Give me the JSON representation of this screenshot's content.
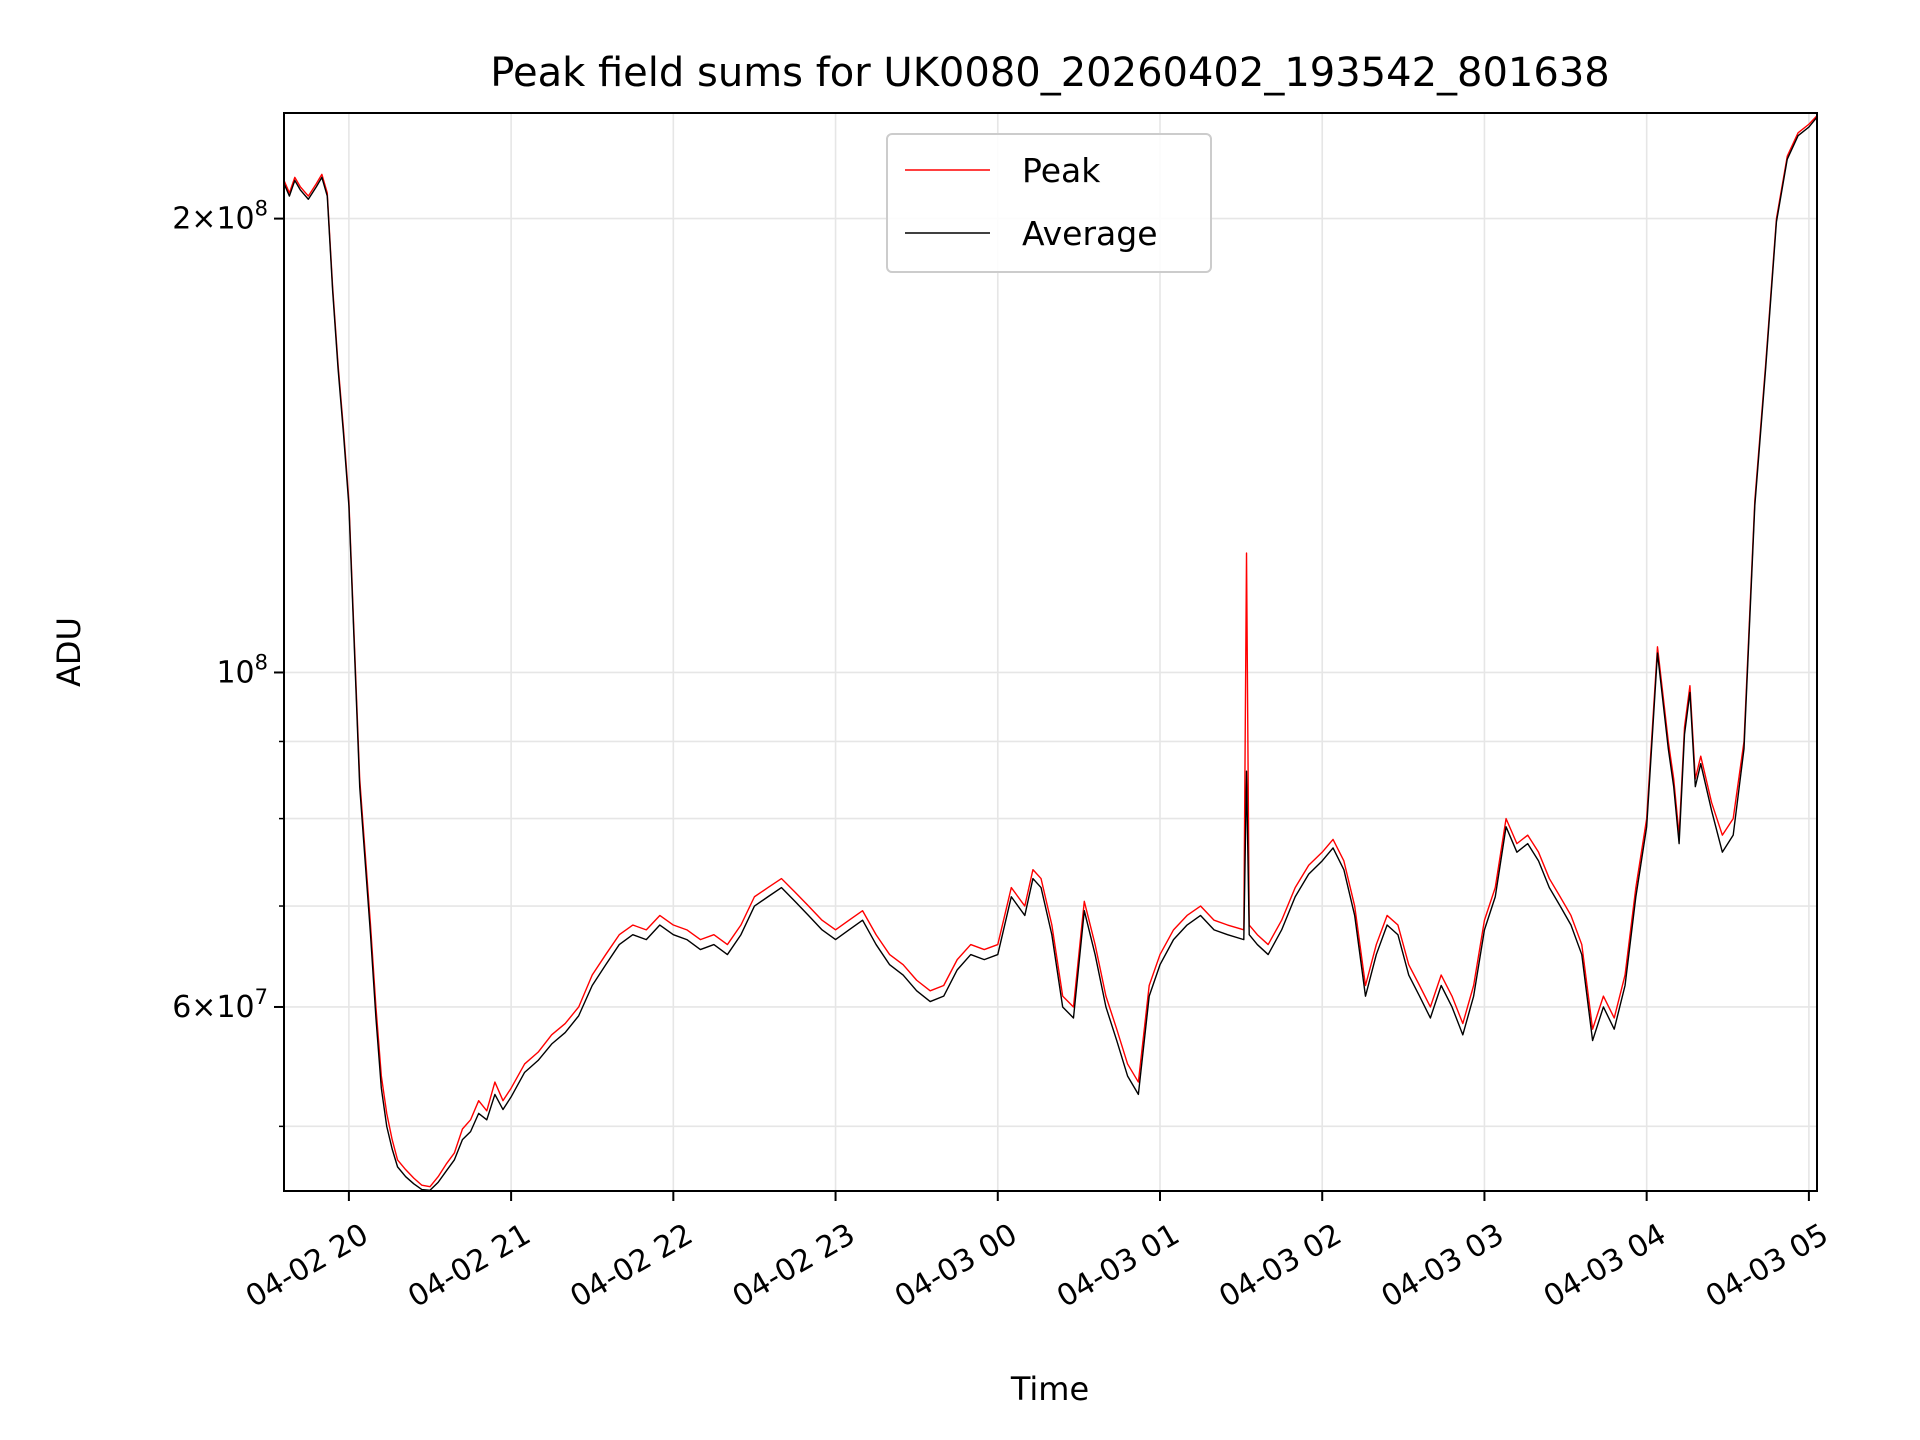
{
  "chart_data": {
    "type": "line",
    "title": "Peak field sums for UK0080_20260402_193542_801638",
    "xlabel": "Time",
    "ylabel": "ADU",
    "y_scale": "log",
    "ylim": [
      45300000,
      235000000
    ],
    "xlim": [
      "2026-04-02 19:36",
      "2026-04-03 05:03"
    ],
    "grid": true,
    "legend": {
      "placement": "top-center",
      "entries": [
        "Peak",
        "Average"
      ]
    },
    "x_ticks": [
      {
        "value": "2026-04-02 20:00",
        "label": "04-02 20"
      },
      {
        "value": "2026-04-02 21:00",
        "label": "04-02 21"
      },
      {
        "value": "2026-04-02 22:00",
        "label": "04-02 22"
      },
      {
        "value": "2026-04-02 23:00",
        "label": "04-02 23"
      },
      {
        "value": "2026-04-03 00:00",
        "label": "04-03 00"
      },
      {
        "value": "2026-04-03 01:00",
        "label": "04-03 01"
      },
      {
        "value": "2026-04-03 02:00",
        "label": "04-03 02"
      },
      {
        "value": "2026-04-03 03:00",
        "label": "04-03 03"
      },
      {
        "value": "2026-04-03 04:00",
        "label": "04-03 04"
      },
      {
        "value": "2026-04-03 05:00",
        "label": "04-03 05"
      }
    ],
    "y_ticks_major": [
      {
        "value": 60000000,
        "base": "6",
        "exp": "7"
      },
      {
        "value": 100000000,
        "base": "",
        "exp": "8"
      },
      {
        "value": 200000000,
        "base": "2",
        "exp": "8"
      }
    ],
    "y_ticks_minor": [
      50000000,
      70000000,
      80000000,
      90000000
    ],
    "series": [
      {
        "name": "Peak",
        "color": "#ff0000",
        "x": [
          "2026-04-02 19:36",
          "2026-04-02 19:38",
          "2026-04-02 19:40",
          "2026-04-02 19:42",
          "2026-04-02 19:45",
          "2026-04-02 19:48",
          "2026-04-02 19:50",
          "2026-04-02 19:52",
          "2026-04-02 19:54",
          "2026-04-02 19:56",
          "2026-04-02 19:58",
          "2026-04-02 20:00",
          "2026-04-02 20:02",
          "2026-04-02 20:04",
          "2026-04-02 20:06",
          "2026-04-02 20:08",
          "2026-04-02 20:10",
          "2026-04-02 20:12",
          "2026-04-02 20:14",
          "2026-04-02 20:16",
          "2026-04-02 20:18",
          "2026-04-02 20:21",
          "2026-04-02 20:24",
          "2026-04-02 20:27",
          "2026-04-02 20:30",
          "2026-04-02 20:33",
          "2026-04-02 20:36",
          "2026-04-02 20:39",
          "2026-04-02 20:42",
          "2026-04-02 20:45",
          "2026-04-02 20:48",
          "2026-04-02 20:51",
          "2026-04-02 20:54",
          "2026-04-02 20:57",
          "2026-04-02 21:00",
          "2026-04-02 21:05",
          "2026-04-02 21:10",
          "2026-04-02 21:15",
          "2026-04-02 21:20",
          "2026-04-02 21:25",
          "2026-04-02 21:30",
          "2026-04-02 21:35",
          "2026-04-02 21:40",
          "2026-04-02 21:45",
          "2026-04-02 21:50",
          "2026-04-02 21:55",
          "2026-04-02 22:00",
          "2026-04-02 22:05",
          "2026-04-02 22:10",
          "2026-04-02 22:15",
          "2026-04-02 22:20",
          "2026-04-02 22:25",
          "2026-04-02 22:30",
          "2026-04-02 22:35",
          "2026-04-02 22:40",
          "2026-04-02 22:45",
          "2026-04-02 22:50",
          "2026-04-02 22:55",
          "2026-04-02 23:00",
          "2026-04-02 23:05",
          "2026-04-02 23:10",
          "2026-04-02 23:15",
          "2026-04-02 23:20",
          "2026-04-02 23:25",
          "2026-04-02 23:30",
          "2026-04-02 23:35",
          "2026-04-02 23:40",
          "2026-04-02 23:45",
          "2026-04-02 23:50",
          "2026-04-02 23:55",
          "2026-04-03 00:00",
          "2026-04-03 00:05",
          "2026-04-03 00:10",
          "2026-04-03 00:13",
          "2026-04-03 00:16",
          "2026-04-03 00:20",
          "2026-04-03 00:24",
          "2026-04-03 00:28",
          "2026-04-03 00:32",
          "2026-04-03 00:36",
          "2026-04-03 00:40",
          "2026-04-03 00:44",
          "2026-04-03 00:48",
          "2026-04-03 00:52",
          "2026-04-03 00:56",
          "2026-04-03 01:00",
          "2026-04-03 01:05",
          "2026-04-03 01:10",
          "2026-04-03 01:15",
          "2026-04-03 01:20",
          "2026-04-03 01:25",
          "2026-04-03 01:31",
          "2026-04-03 01:32",
          "2026-04-03 01:33",
          "2026-04-03 01:36",
          "2026-04-03 01:40",
          "2026-04-03 01:45",
          "2026-04-03 01:50",
          "2026-04-03 01:55",
          "2026-04-03 02:00",
          "2026-04-03 02:04",
          "2026-04-03 02:08",
          "2026-04-03 02:12",
          "2026-04-03 02:16",
          "2026-04-03 02:20",
          "2026-04-03 02:24",
          "2026-04-03 02:28",
          "2026-04-03 02:32",
          "2026-04-03 02:36",
          "2026-04-03 02:40",
          "2026-04-03 02:44",
          "2026-04-03 02:48",
          "2026-04-03 02:52",
          "2026-04-03 02:56",
          "2026-04-03 03:00",
          "2026-04-03 03:04",
          "2026-04-03 03:08",
          "2026-04-03 03:12",
          "2026-04-03 03:16",
          "2026-04-03 03:20",
          "2026-04-03 03:24",
          "2026-04-03 03:28",
          "2026-04-03 03:32",
          "2026-04-03 03:36",
          "2026-04-03 03:40",
          "2026-04-03 03:44",
          "2026-04-03 03:48",
          "2026-04-03 03:52",
          "2026-04-03 03:56",
          "2026-04-03 04:00",
          "2026-04-03 04:04",
          "2026-04-03 04:08",
          "2026-04-03 04:10",
          "2026-04-03 04:12",
          "2026-04-03 04:14",
          "2026-04-03 04:16",
          "2026-04-03 04:18",
          "2026-04-03 04:20",
          "2026-04-03 04:24",
          "2026-04-03 04:28",
          "2026-04-03 04:32",
          "2026-04-03 04:36",
          "2026-04-03 04:40",
          "2026-04-03 04:44",
          "2026-04-03 04:48",
          "2026-04-03 04:52",
          "2026-04-03 04:56",
          "2026-04-03 05:00",
          "2026-04-03 05:03"
        ],
        "values": [
          212000000,
          208000000,
          213000000,
          210000000,
          207000000,
          211000000,
          214000000,
          208000000,
          180000000,
          160000000,
          145000000,
          130000000,
          105000000,
          85000000,
          76000000,
          68000000,
          60000000,
          54000000,
          51000000,
          49000000,
          47500000,
          46800000,
          46200000,
          45700000,
          45600000,
          46300000,
          47200000,
          48000000,
          49800000,
          50500000,
          52000000,
          51200000,
          53500000,
          52000000,
          53000000,
          55000000,
          56000000,
          57500000,
          58500000,
          60000000,
          63000000,
          65000000,
          67000000,
          68000000,
          67500000,
          69000000,
          68000000,
          67500000,
          66500000,
          67000000,
          66000000,
          68000000,
          71000000,
          72000000,
          73000000,
          71500000,
          70000000,
          68500000,
          67500000,
          68500000,
          69500000,
          67000000,
          65000000,
          64000000,
          62500000,
          61500000,
          62000000,
          64500000,
          66000000,
          65500000,
          66000000,
          72000000,
          70000000,
          74000000,
          73000000,
          68000000,
          61000000,
          60000000,
          70500000,
          66000000,
          61000000,
          58000000,
          55000000,
          53500000,
          62000000,
          65000000,
          67500000,
          69000000,
          70000000,
          68500000,
          68000000,
          67500000,
          120000000,
          68000000,
          67000000,
          66000000,
          68500000,
          72000000,
          74500000,
          76000000,
          77500000,
          75000000,
          70000000,
          62000000,
          66000000,
          69000000,
          68000000,
          64000000,
          62000000,
          60000000,
          63000000,
          61000000,
          58500000,
          62000000,
          68500000,
          72000000,
          80000000,
          77000000,
          78000000,
          76000000,
          73000000,
          71000000,
          69000000,
          66000000,
          58000000,
          61000000,
          59000000,
          63000000,
          72000000,
          80000000,
          104000000,
          90000000,
          85000000,
          78000000,
          92000000,
          98000000,
          85000000,
          88000000,
          82000000,
          78000000,
          80000000,
          90000000,
          130000000,
          160000000,
          200000000,
          220000000,
          228000000,
          231000000,
          234000000
        ]
      },
      {
        "name": "Average",
        "color": "#000000",
        "x": [
          "2026-04-02 19:36",
          "2026-04-02 19:38",
          "2026-04-02 19:40",
          "2026-04-02 19:42",
          "2026-04-02 19:45",
          "2026-04-02 19:48",
          "2026-04-02 19:50",
          "2026-04-02 19:52",
          "2026-04-02 19:54",
          "2026-04-02 19:56",
          "2026-04-02 19:58",
          "2026-04-02 20:00",
          "2026-04-02 20:02",
          "2026-04-02 20:04",
          "2026-04-02 20:06",
          "2026-04-02 20:08",
          "2026-04-02 20:10",
          "2026-04-02 20:12",
          "2026-04-02 20:14",
          "2026-04-02 20:16",
          "2026-04-02 20:18",
          "2026-04-02 20:21",
          "2026-04-02 20:24",
          "2026-04-02 20:27",
          "2026-04-02 20:30",
          "2026-04-02 20:33",
          "2026-04-02 20:36",
          "2026-04-02 20:39",
          "2026-04-02 20:42",
          "2026-04-02 20:45",
          "2026-04-02 20:48",
          "2026-04-02 20:51",
          "2026-04-02 20:54",
          "2026-04-02 20:57",
          "2026-04-02 21:00",
          "2026-04-02 21:05",
          "2026-04-02 21:10",
          "2026-04-02 21:15",
          "2026-04-02 21:20",
          "2026-04-02 21:25",
          "2026-04-02 21:30",
          "2026-04-02 21:35",
          "2026-04-02 21:40",
          "2026-04-02 21:45",
          "2026-04-02 21:50",
          "2026-04-02 21:55",
          "2026-04-02 22:00",
          "2026-04-02 22:05",
          "2026-04-02 22:10",
          "2026-04-02 22:15",
          "2026-04-02 22:20",
          "2026-04-02 22:25",
          "2026-04-02 22:30",
          "2026-04-02 22:35",
          "2026-04-02 22:40",
          "2026-04-02 22:45",
          "2026-04-02 22:50",
          "2026-04-02 22:55",
          "2026-04-02 23:00",
          "2026-04-02 23:05",
          "2026-04-02 23:10",
          "2026-04-02 23:15",
          "2026-04-02 23:20",
          "2026-04-02 23:25",
          "2026-04-02 23:30",
          "2026-04-02 23:35",
          "2026-04-02 23:40",
          "2026-04-02 23:45",
          "2026-04-02 23:50",
          "2026-04-02 23:55",
          "2026-04-03 00:00",
          "2026-04-03 00:05",
          "2026-04-03 00:10",
          "2026-04-03 00:13",
          "2026-04-03 00:16",
          "2026-04-03 00:20",
          "2026-04-03 00:24",
          "2026-04-03 00:28",
          "2026-04-03 00:32",
          "2026-04-03 00:36",
          "2026-04-03 00:40",
          "2026-04-03 00:44",
          "2026-04-03 00:48",
          "2026-04-03 00:52",
          "2026-04-03 00:56",
          "2026-04-03 01:00",
          "2026-04-03 01:05",
          "2026-04-03 01:10",
          "2026-04-03 01:15",
          "2026-04-03 01:20",
          "2026-04-03 01:25",
          "2026-04-03 01:31",
          "2026-04-03 01:32",
          "2026-04-03 01:33",
          "2026-04-03 01:36",
          "2026-04-03 01:40",
          "2026-04-03 01:45",
          "2026-04-03 01:50",
          "2026-04-03 01:55",
          "2026-04-03 02:00",
          "2026-04-03 02:04",
          "2026-04-03 02:08",
          "2026-04-03 02:12",
          "2026-04-03 02:16",
          "2026-04-03 02:20",
          "2026-04-03 02:24",
          "2026-04-03 02:28",
          "2026-04-03 02:32",
          "2026-04-03 02:36",
          "2026-04-03 02:40",
          "2026-04-03 02:44",
          "2026-04-03 02:48",
          "2026-04-03 02:52",
          "2026-04-03 02:56",
          "2026-04-03 03:00",
          "2026-04-03 03:04",
          "2026-04-03 03:08",
          "2026-04-03 03:12",
          "2026-04-03 03:16",
          "2026-04-03 03:20",
          "2026-04-03 03:24",
          "2026-04-03 03:28",
          "2026-04-03 03:32",
          "2026-04-03 03:36",
          "2026-04-03 03:40",
          "2026-04-03 03:44",
          "2026-04-03 03:48",
          "2026-04-03 03:52",
          "2026-04-03 03:56",
          "2026-04-03 04:00",
          "2026-04-03 04:04",
          "2026-04-03 04:08",
          "2026-04-03 04:10",
          "2026-04-03 04:12",
          "2026-04-03 04:14",
          "2026-04-03 04:16",
          "2026-04-03 04:18",
          "2026-04-03 04:20",
          "2026-04-03 04:24",
          "2026-04-03 04:28",
          "2026-04-03 04:32",
          "2026-04-03 04:36",
          "2026-04-03 04:40",
          "2026-04-03 04:44",
          "2026-04-03 04:48",
          "2026-04-03 04:52",
          "2026-04-03 04:56",
          "2026-04-03 05:00",
          "2026-04-03 05:03"
        ],
        "values": [
          211000000,
          207000000,
          212000000,
          209000000,
          206000000,
          210000000,
          213000000,
          207000000,
          179000000,
          159000000,
          144000000,
          129000000,
          104000000,
          84000000,
          75000000,
          67000000,
          59000000,
          53000000,
          50000000,
          48300000,
          47000000,
          46300000,
          45800000,
          45400000,
          45350000,
          45900000,
          46700000,
          47500000,
          49000000,
          49600000,
          51000000,
          50500000,
          52500000,
          51300000,
          52300000,
          54300000,
          55300000,
          56700000,
          57700000,
          59200000,
          62000000,
          64000000,
          66000000,
          67000000,
          66500000,
          68000000,
          67000000,
          66500000,
          65500000,
          66000000,
          65000000,
          67000000,
          70000000,
          71000000,
          72000000,
          70500000,
          69000000,
          67500000,
          66500000,
          67500000,
          68500000,
          66000000,
          64000000,
          63000000,
          61500000,
          60500000,
          61000000,
          63500000,
          65000000,
          64500000,
          65000000,
          71000000,
          69000000,
          73000000,
          72000000,
          67000000,
          60000000,
          59000000,
          69500000,
          65000000,
          60000000,
          57000000,
          54000000,
          52500000,
          61000000,
          64000000,
          66500000,
          68000000,
          69000000,
          67500000,
          67000000,
          66500000,
          86000000,
          67000000,
          66000000,
          65000000,
          67500000,
          71000000,
          73500000,
          75000000,
          76500000,
          74000000,
          69000000,
          61000000,
          65000000,
          68000000,
          67000000,
          63000000,
          61000000,
          59000000,
          62000000,
          60000000,
          57500000,
          61000000,
          67500000,
          71000000,
          79000000,
          76000000,
          77000000,
          75000000,
          72000000,
          70000000,
          68000000,
          65000000,
          57000000,
          60000000,
          58000000,
          62000000,
          71000000,
          79000000,
          103000000,
          89000000,
          84000000,
          77000000,
          91000000,
          97000000,
          84000000,
          87000000,
          81000000,
          76000000,
          78000000,
          89000000,
          129000000,
          159000000,
          199000000,
          219000000,
          227000000,
          230000000,
          233500000
        ]
      }
    ]
  }
}
